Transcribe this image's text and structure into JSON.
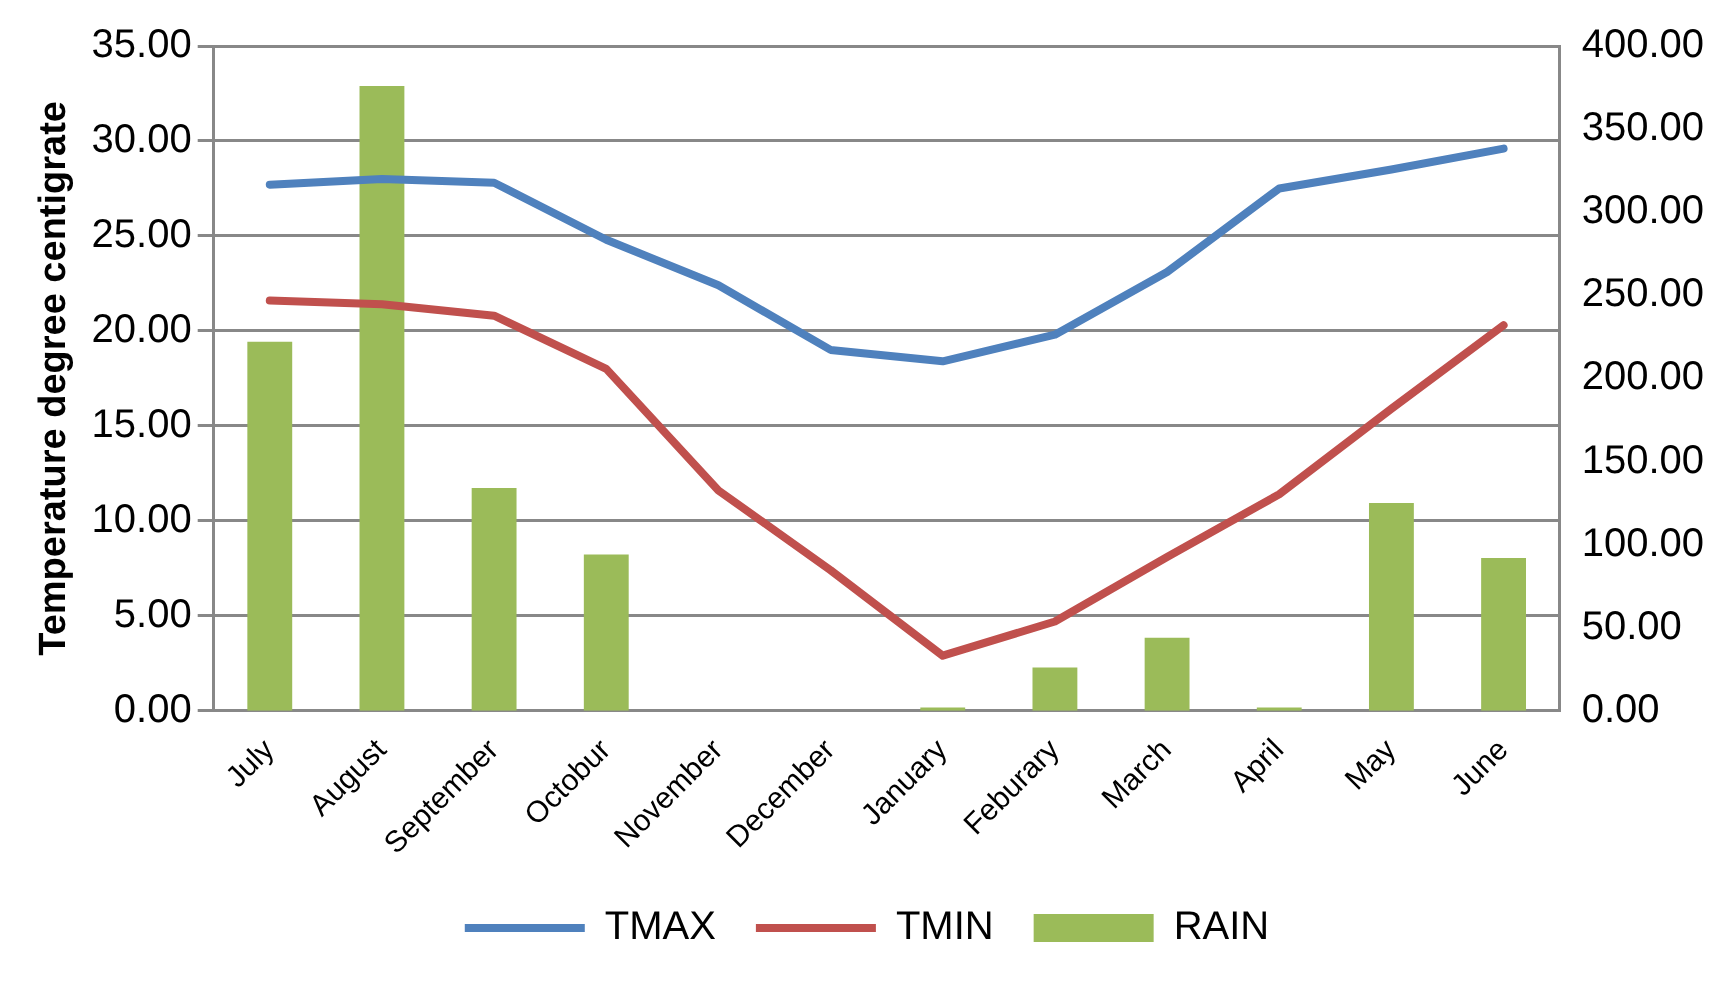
{
  "chart_data": {
    "type": "line",
    "ylabel": "Temperature degree centigrate",
    "categories": [
      "July",
      "August",
      "September",
      "Octobur",
      "November",
      "December",
      "January",
      "Feburary",
      "March",
      "April",
      "May",
      "June"
    ],
    "series": [
      {
        "name": "RAIN",
        "type": "bar",
        "axis": "y2",
        "color": "#9bbb59",
        "values": [
          222,
          376,
          134,
          94,
          0,
          0,
          2,
          26,
          44,
          2,
          125,
          92
        ]
      },
      {
        "name": "TMAX",
        "color": "#4f81bd",
        "values": [
          27.7,
          28.0,
          27.8,
          24.8,
          22.4,
          19.0,
          18.4,
          19.8,
          23.1,
          27.5,
          28.5,
          29.6
        ]
      },
      {
        "name": "TMIN",
        "color": "#c0504d",
        "values": [
          21.6,
          21.4,
          20.8,
          18.0,
          11.6,
          7.4,
          2.9,
          4.7,
          8.1,
          11.4,
          15.9,
          20.3
        ]
      }
    ],
    "ylim": [
      0,
      35
    ],
    "yticks": [
      {
        "value": 0,
        "label": "0.00"
      },
      {
        "value": 5,
        "label": "5.00"
      },
      {
        "value": 10,
        "label": "10.00"
      },
      {
        "value": 15,
        "label": "15.00"
      },
      {
        "value": 20,
        "label": "20.00"
      },
      {
        "value": 25,
        "label": "25.00"
      },
      {
        "value": 30,
        "label": "30.00"
      },
      {
        "value": 35,
        "label": "35.00"
      }
    ],
    "y2lim": [
      0,
      400
    ],
    "y2ticks": [
      {
        "value": 0,
        "label": "0.00"
      },
      {
        "value": 50,
        "label": "50.00"
      },
      {
        "value": 100,
        "label": "100.00"
      },
      {
        "value": 150,
        "label": "150.00"
      },
      {
        "value": 200,
        "label": "200.00"
      },
      {
        "value": 250,
        "label": "250.00"
      },
      {
        "value": 300,
        "label": "300.00"
      },
      {
        "value": 350,
        "label": "350.00"
      },
      {
        "value": 400,
        "label": "400.00"
      }
    ],
    "grid": "y",
    "legend": "bottom",
    "marker": "none",
    "line_style": "solid"
  }
}
